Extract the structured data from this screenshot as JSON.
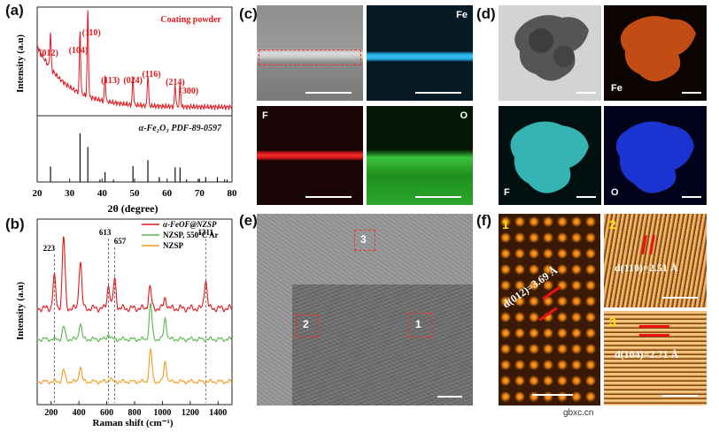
{
  "panel_labels": {
    "a": "(a)",
    "b": "(b)",
    "c": "(c)",
    "d": "(d)",
    "e": "(e)",
    "f": "(f)"
  },
  "chart_data": [
    {
      "type": "line",
      "panel": "a",
      "title": "",
      "xlabel": "2θ (degree)",
      "ylabel": "Intensity (a.u)",
      "xlim": [
        20,
        80
      ],
      "xticks": [
        20,
        30,
        40,
        50,
        60,
        70,
        80
      ],
      "series": [
        {
          "name": "Coating powder",
          "color": "#e0191e",
          "peaks": [
            {
              "x": 24.1,
              "label": "(012)"
            },
            {
              "x": 33.2,
              "label": "(104)"
            },
            {
              "x": 35.6,
              "label": "(110)"
            },
            {
              "x": 40.9,
              "label": "(113)"
            },
            {
              "x": 49.5,
              "label": "(024)"
            },
            {
              "x": 54.1,
              "label": "(116)"
            },
            {
              "x": 62.5,
              "label": "(214)"
            },
            {
              "x": 64.0,
              "label": "(300)"
            }
          ]
        }
      ],
      "reference": {
        "name": "α-Fe₂O₃ PDF-89-0597",
        "sticks": [
          {
            "x": 24.1,
            "h": 0.32
          },
          {
            "x": 33.2,
            "h": 1.0
          },
          {
            "x": 35.6,
            "h": 0.72
          },
          {
            "x": 39.3,
            "h": 0.05
          },
          {
            "x": 40.9,
            "h": 0.2
          },
          {
            "x": 43.5,
            "h": 0.05
          },
          {
            "x": 49.5,
            "h": 0.33
          },
          {
            "x": 54.1,
            "h": 0.45
          },
          {
            "x": 57.6,
            "h": 0.1
          },
          {
            "x": 62.5,
            "h": 0.3
          },
          {
            "x": 64.0,
            "h": 0.3
          },
          {
            "x": 66.0,
            "h": 0.05
          },
          {
            "x": 69.6,
            "h": 0.06
          },
          {
            "x": 71.9,
            "h": 0.1
          },
          {
            "x": 75.5,
            "h": 0.1
          },
          {
            "x": 77.7,
            "h": 0.05
          },
          {
            "x": 78.5,
            "h": 0.05
          }
        ]
      }
    },
    {
      "type": "line",
      "panel": "b",
      "title": "",
      "xlabel": "Raman shift (cm⁻¹)",
      "ylabel": "Intensity (a.u)",
      "xlim": [
        100,
        1500
      ],
      "xticks": [
        200,
        400,
        600,
        800,
        1000,
        1200,
        1400
      ],
      "guides": [
        223,
        613,
        657,
        1311
      ],
      "series": [
        {
          "name": "α-FeOF@NZSP",
          "color": "#e0191e",
          "peaks": [
            [
              223,
              0.6
            ],
            [
              290,
              1.35
            ],
            [
              410,
              0.9
            ],
            [
              613,
              0.45
            ],
            [
              657,
              0.55
            ],
            [
              910,
              0.4
            ],
            [
              1020,
              0.2
            ],
            [
              1311,
              0.55
            ]
          ]
        },
        {
          "name": "NZSP, 550°C Ar",
          "color": "#5ab54b",
          "peaks": [
            [
              290,
              0.35
            ],
            [
              410,
              0.45
            ],
            [
              613,
              0.15
            ],
            [
              915,
              1.0
            ],
            [
              1020,
              0.6
            ]
          ]
        },
        {
          "name": "NZSP",
          "color": "#f39a1e",
          "peaks": [
            [
              290,
              0.35
            ],
            [
              410,
              0.45
            ],
            [
              625,
              0.1
            ],
            [
              915,
              0.95
            ],
            [
              1020,
              0.6
            ]
          ]
        }
      ]
    }
  ],
  "panel_c": {
    "fe": "Fe",
    "f": "F",
    "o": "O"
  },
  "panel_d": {
    "fe": "Fe",
    "f": "F",
    "o": "O"
  },
  "panel_e": {
    "regions": [
      "1",
      "2",
      "3"
    ]
  },
  "panel_f": {
    "tile1": {
      "num": "1",
      "spacing": "d(012)=3.69 Å"
    },
    "tile2": {
      "num": "2",
      "spacing": "d(110)=2.51 Å"
    },
    "tile3": {
      "num": "3",
      "spacing": "d(104)=2.71 Å"
    }
  },
  "watermark": "gbxc.cn"
}
